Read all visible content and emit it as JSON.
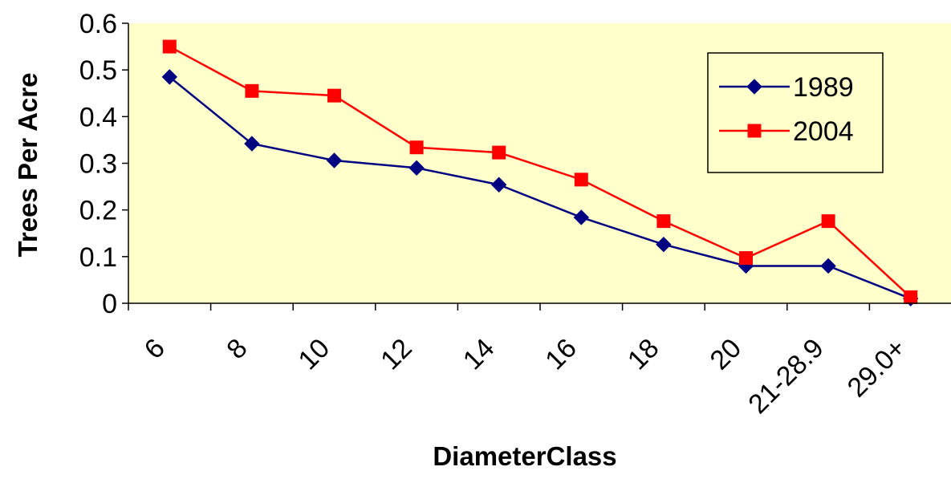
{
  "chart_data": {
    "type": "line",
    "title": "",
    "xlabel": "DiameterClass",
    "ylabel": "Trees Per Acre",
    "categories": [
      "6",
      "8",
      "10",
      "12",
      "14",
      "16",
      "18",
      "20",
      "21-28.9",
      "29.0+"
    ],
    "ylim": [
      0,
      0.6
    ],
    "yticks": [
      "0",
      "0.1",
      "0.2",
      "0.3",
      "0.4",
      "0.5",
      "0.6"
    ],
    "grid": false,
    "legend_position": "top-right",
    "plot_background": "#ffffcc",
    "series": [
      {
        "name": "1989",
        "color": "#000080",
        "marker": "diamond",
        "values": [
          0.485,
          0.342,
          0.306,
          0.29,
          0.254,
          0.184,
          0.126,
          0.08,
          0.08,
          0.01
        ]
      },
      {
        "name": "2004",
        "color": "#ff0000",
        "marker": "square",
        "values": [
          0.55,
          0.455,
          0.445,
          0.334,
          0.323,
          0.265,
          0.176,
          0.097,
          0.176,
          0.013
        ]
      }
    ]
  }
}
